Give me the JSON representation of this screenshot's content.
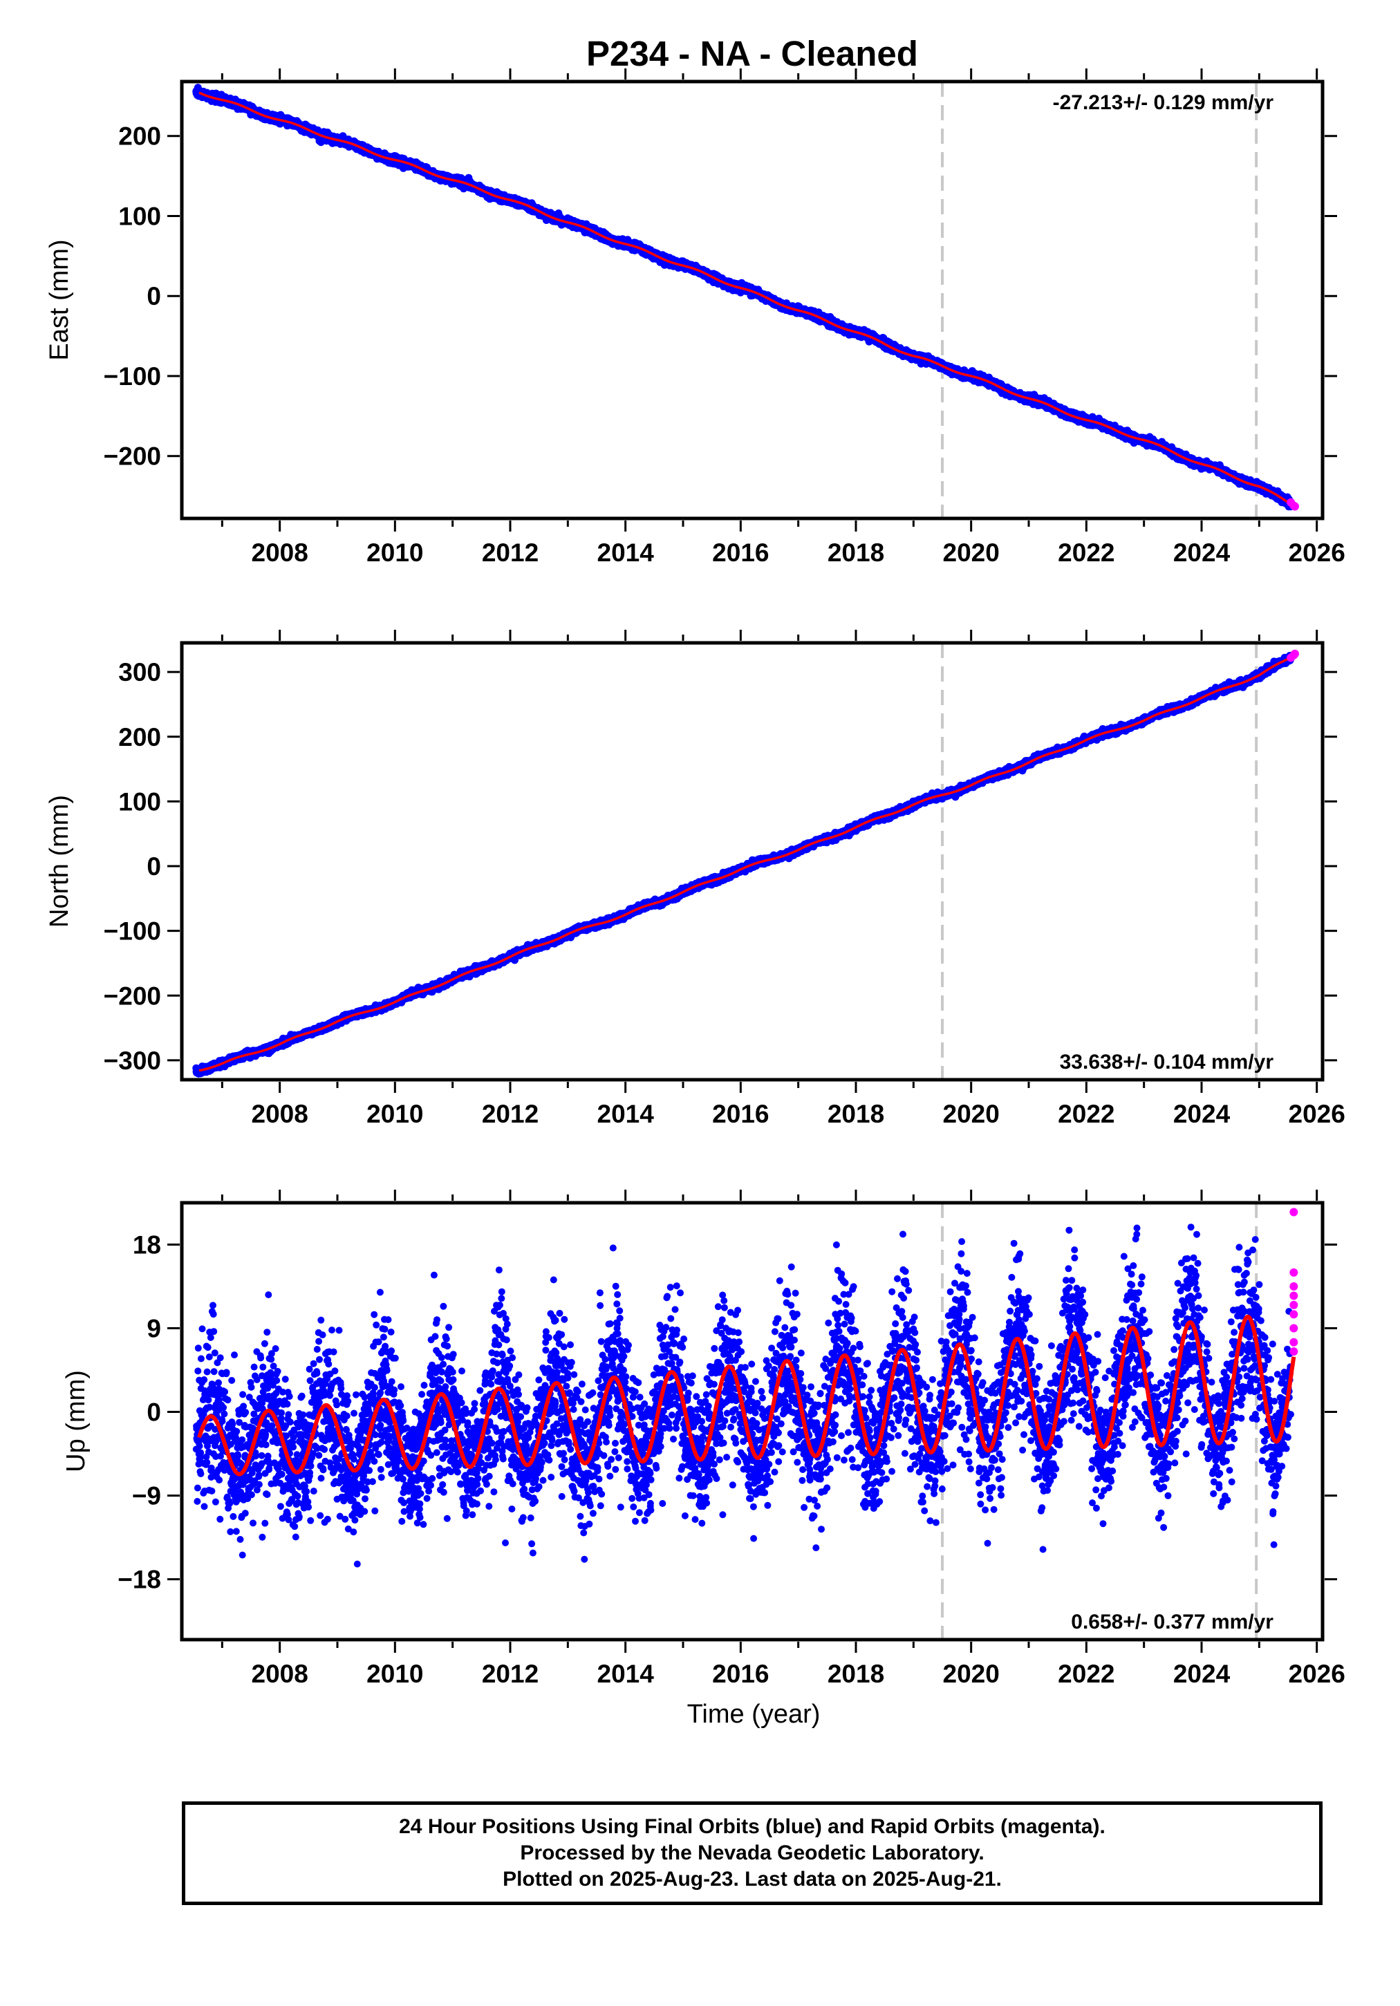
{
  "chart_data": {
    "type": "scatter",
    "title": "P234  - NA - Cleaned",
    "xlabel": "Time (year)",
    "xlim": [
      2006.3,
      2026.1
    ],
    "xticks": [
      2008,
      2010,
      2012,
      2014,
      2016,
      2018,
      2020,
      2022,
      2024,
      2026
    ],
    "equipment_change_epochs": [
      2019.5,
      2024.95
    ],
    "legend": [
      "Final Orbits (blue)",
      "Rapid Orbits (magenta)",
      "Model fit (red)"
    ],
    "colors": {
      "final": "#0000ff",
      "rapid": "#ff00ff",
      "model": "#ff0000",
      "break_line": "#c8c8c8"
    },
    "panels": [
      {
        "name": "east",
        "ylabel": "East (mm)",
        "ylim": [
          -278,
          268
        ],
        "yticks": [
          -200,
          -100,
          0,
          100,
          200
        ],
        "ytick_labels": [
          "−200",
          "−100",
          "0",
          "100",
          "200"
        ],
        "velocity_text": "-27.213+/- 0.129 mm/yr",
        "velocity_position": "top-right",
        "velocity_mm_per_yr": -27.213,
        "series": [
          {
            "name": "Final Orbits",
            "x": [
              2006.6,
              2007.0,
              2008.0,
              2009.0,
              2010.0,
              2011.0,
              2012.0,
              2013.0,
              2014.0,
              2015.0,
              2016.0,
              2017.0,
              2018.0,
              2019.0,
              2020.0,
              2021.0,
              2022.0,
              2023.0,
              2024.0,
              2025.0,
              2025.6
            ],
            "y": [
              255,
              245,
              220,
              195,
              170,
              145,
              120,
              92,
              65,
              38,
              10,
              -18,
              -45,
              -75,
              -100,
              -128,
              -155,
              -180,
              -210,
              -238,
              -262
            ]
          }
        ],
        "rapid_points": {
          "x": [
            2025.55,
            2025.6,
            2025.62
          ],
          "y": [
            -258,
            -262,
            -263
          ]
        }
      },
      {
        "name": "north",
        "ylabel": "North (mm)",
        "ylim": [
          -330,
          345
        ],
        "yticks": [
          -300,
          -200,
          -100,
          0,
          100,
          200,
          300
        ],
        "ytick_labels": [
          "−300",
          "−200",
          "−100",
          "0",
          "100",
          "200",
          "300"
        ],
        "velocity_text": "33.638+/- 0.104 mm/yr",
        "velocity_position": "bottom-right",
        "velocity_mm_per_yr": 33.638,
        "series": [
          {
            "name": "Final Orbits",
            "x": [
              2006.6,
              2007.0,
              2008.0,
              2009.0,
              2010.0,
              2011.0,
              2012.0,
              2013.0,
              2014.0,
              2015.0,
              2016.0,
              2017.0,
              2018.0,
              2019.0,
              2020.0,
              2021.0,
              2022.0,
              2023.0,
              2024.0,
              2025.0,
              2025.6
            ],
            "y": [
              -315,
              -305,
              -275,
              -240,
              -210,
              -175,
              -140,
              -105,
              -75,
              -40,
              -5,
              25,
              60,
              95,
              125,
              160,
              195,
              225,
              260,
              295,
              325
            ]
          }
        ],
        "rapid_points": {
          "x": [
            2025.55,
            2025.6,
            2025.62
          ],
          "y": [
            322,
            326,
            328
          ]
        }
      },
      {
        "name": "up",
        "ylabel": "Up (mm)",
        "ylim": [
          -24.5,
          22.5
        ],
        "yticks": [
          -18,
          -9,
          0,
          9,
          18
        ],
        "ytick_labels": [
          "−18",
          "−9",
          "0",
          "9",
          "18"
        ],
        "velocity_text": "0.658+/- 0.377 mm/yr",
        "velocity_position": "bottom-right",
        "velocity_mm_per_yr": 0.658,
        "model": {
          "offset_mm_at_2016": 0.0,
          "annual_amplitude_mm": 5.0,
          "annual_amplitude_growth_mm_per_yr": 0.2,
          "annual_peak_phase_yr": 0.8,
          "scatter_sd_mm": 3.5
        },
        "series": [
          {
            "name": "Model fit",
            "x": [
              2006.8,
              2007.3,
              2007.8,
              2008.3,
              2008.8,
              2009.3,
              2009.8,
              2010.3,
              2010.8,
              2011.3,
              2011.8,
              2012.3,
              2012.8,
              2013.3,
              2013.8,
              2014.3,
              2014.8,
              2015.3,
              2015.8,
              2016.3,
              2016.8,
              2017.3,
              2017.8,
              2018.3,
              2018.8,
              2019.3,
              2019.8,
              2020.3,
              2020.8,
              2021.3,
              2021.8,
              2022.3,
              2022.8,
              2023.3,
              2023.8,
              2024.3,
              2024.8,
              2025.3
            ],
            "y": [
              -0.5,
              -10.5,
              0.3,
              -10.0,
              1.0,
              -9.5,
              1.5,
              -9.0,
              2.0,
              -8.0,
              3.0,
              -7.5,
              3.5,
              -6.5,
              4.0,
              -6.0,
              4.5,
              -5.5,
              5.5,
              -5.0,
              6.0,
              -4.0,
              6.5,
              -3.5,
              7.0,
              -2.5,
              6.5,
              -3.0,
              7.0,
              -2.5,
              7.5,
              -2.0,
              8.0,
              -1.5,
              9.0,
              -1.0,
              10.0,
              -3.0
            ]
          }
        ],
        "rapid_points": {
          "x": [
            2025.6,
            2025.6,
            2025.6,
            2025.6,
            2025.6,
            2025.6,
            2025.6,
            2025.6,
            2025.6
          ],
          "y": [
            21.5,
            15.0,
            13.5,
            12.5,
            11.5,
            10.5,
            9.0,
            7.5,
            6.5
          ]
        }
      }
    ]
  },
  "footer": {
    "line1": "24 Hour Positions Using Final Orbits (blue) and Rapid Orbits (magenta).",
    "line2": "Processed by the Nevada Geodetic Laboratory.",
    "line3": "Plotted on 2025-Aug-23. Last data on 2025-Aug-21."
  }
}
